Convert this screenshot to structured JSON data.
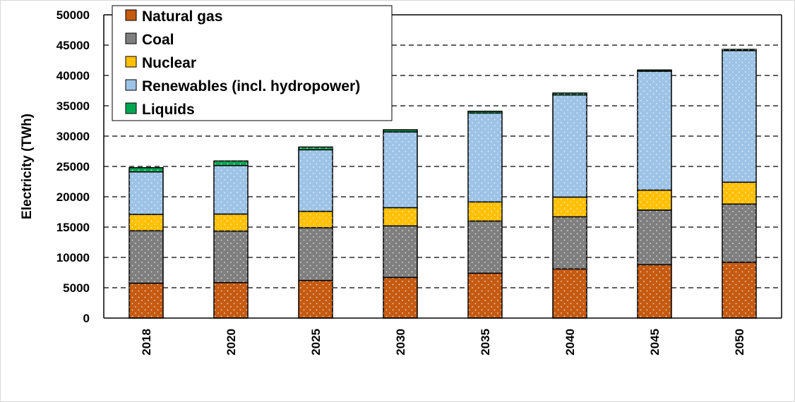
{
  "chart_data": {
    "type": "bar",
    "stacked": true,
    "categories": [
      "2018",
      "2020",
      "2025",
      "2030",
      "2035",
      "2040",
      "2045",
      "2050"
    ],
    "series": [
      {
        "name": "Natural gas",
        "color": "#c55a11",
        "values": [
          5750,
          5850,
          6200,
          6700,
          7400,
          8100,
          8800,
          9200
        ]
      },
      {
        "name": "Coal",
        "color": "#7f7f7f",
        "values": [
          8650,
          8500,
          8700,
          8500,
          8600,
          8600,
          9000,
          9600
        ]
      },
      {
        "name": "Nuclear",
        "color": "#ffc000",
        "values": [
          2700,
          2800,
          2700,
          3000,
          3150,
          3250,
          3300,
          3600
        ]
      },
      {
        "name": "Renewables (incl. hydropower)",
        "color": "#9dc3e6",
        "values": [
          7000,
          8000,
          10150,
          12500,
          14650,
          16850,
          19600,
          21700
        ]
      },
      {
        "name": "Liquids",
        "color": "#00a651",
        "values": [
          700,
          750,
          450,
          350,
          300,
          300,
          200,
          200
        ]
      }
    ],
    "title": "",
    "xlabel": "",
    "ylabel": "Electricity (TWh)",
    "ylim": [
      0,
      50000
    ],
    "yticks": [
      0,
      5000,
      10000,
      15000,
      20000,
      25000,
      30000,
      35000,
      40000,
      45000,
      50000
    ],
    "grid": "horizontal dashed",
    "legend_position": "top-left"
  }
}
